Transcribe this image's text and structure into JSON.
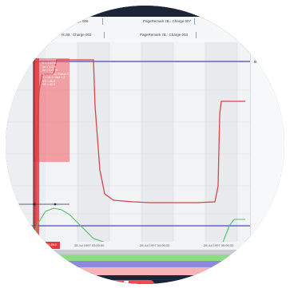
{
  "remarks": {
    "top_row": [
      "Charge 006",
      "PageRemark zB.: Charge 007"
    ],
    "bottom_row": [
      "rk zB.: Charge 002",
      "PageRemark zB.: Charge 003",
      "Page..."
    ]
  },
  "tooltip": {
    "lines": [
      "X = 0.4793",
      "Ax = 1.229",
      "Ax = 1.4776",
      "ID = 12.08 / ParInc 2",
      "Y = 34.9 / Mpf 1.2",
      "YS = 46.8",
      "YE = 82.5"
    ]
  },
  "timeaxis": {
    "marker_label": "1.1997 11:58:0",
    "labels": [
      "28 Jul 1997 03:00:00",
      "28 Jul 1997 04:00:00",
      "28 Jul 1997 05:00:00"
    ]
  },
  "colors": {
    "trace_red": "#d64545",
    "trace_green": "#4cc26a",
    "trace_purple": "#4b49b8",
    "highlight_red": "#f05a5f",
    "band_green": "#8fdc87",
    "band_purple": "#8e89e0",
    "band_red": "#f6b3b6"
  }
}
